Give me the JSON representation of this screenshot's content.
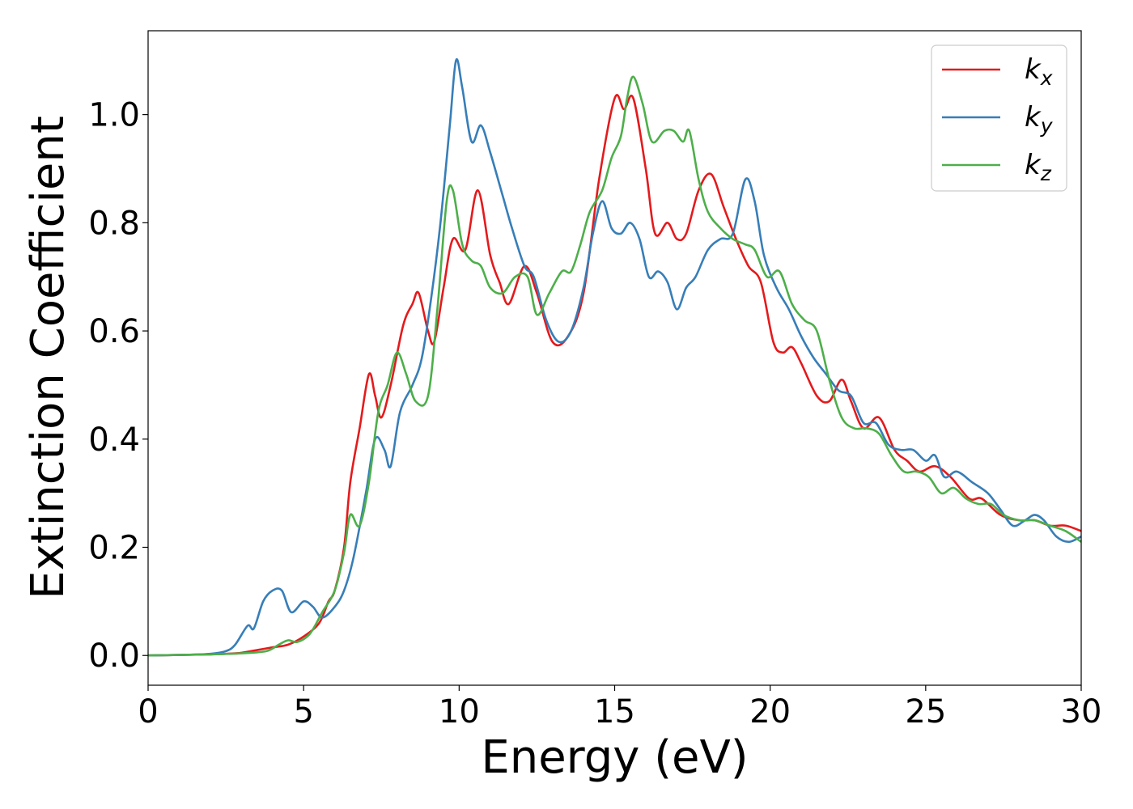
{
  "chart_data": {
    "type": "line",
    "title": "",
    "xlabel": "Energy (eV)",
    "ylabel": "Extinction Coefficient",
    "xlim": [
      0,
      30
    ],
    "ylim": [
      -0.055,
      1.155
    ],
    "xticks": [
      0,
      5,
      10,
      15,
      20,
      25,
      30
    ],
    "xtick_labels": [
      "0",
      "5",
      "10",
      "15",
      "20",
      "25",
      "30"
    ],
    "yticks": [
      0.0,
      0.2,
      0.4,
      0.6,
      0.8,
      1.0
    ],
    "ytick_labels": [
      "0.0",
      "0.2",
      "0.4",
      "0.6",
      "0.8",
      "1.0"
    ],
    "grid": false,
    "legend_position": "top-right",
    "series": [
      {
        "name": "k_x",
        "label_base": "k",
        "label_sub": "x",
        "color": "#e41a1c",
        "points": [
          [
            0,
            0
          ],
          [
            1,
            0.001
          ],
          [
            2,
            0.002
          ],
          [
            2.5,
            0.003
          ],
          [
            3,
            0.005
          ],
          [
            3.5,
            0.01
          ],
          [
            4,
            0.015
          ],
          [
            4.5,
            0.02
          ],
          [
            5,
            0.035
          ],
          [
            5.5,
            0.06
          ],
          [
            5.8,
            0.1
          ],
          [
            6,
            0.12
          ],
          [
            6.3,
            0.2
          ],
          [
            6.5,
            0.32
          ],
          [
            6.8,
            0.42
          ],
          [
            7.1,
            0.52
          ],
          [
            7.3,
            0.48
          ],
          [
            7.5,
            0.44
          ],
          [
            7.8,
            0.5
          ],
          [
            8.2,
            0.61
          ],
          [
            8.5,
            0.65
          ],
          [
            8.7,
            0.67
          ],
          [
            9,
            0.6
          ],
          [
            9.2,
            0.58
          ],
          [
            9.5,
            0.68
          ],
          [
            9.8,
            0.77
          ],
          [
            10.2,
            0.75
          ],
          [
            10.6,
            0.86
          ],
          [
            11,
            0.74
          ],
          [
            11.3,
            0.69
          ],
          [
            11.6,
            0.65
          ],
          [
            12.1,
            0.72
          ],
          [
            12.5,
            0.67
          ],
          [
            13,
            0.58
          ],
          [
            13.5,
            0.59
          ],
          [
            14,
            0.67
          ],
          [
            14.5,
            0.88
          ],
          [
            15,
            1.03
          ],
          [
            15.3,
            1.01
          ],
          [
            15.6,
            1.03
          ],
          [
            16,
            0.9
          ],
          [
            16.3,
            0.78
          ],
          [
            16.7,
            0.8
          ],
          [
            17,
            0.77
          ],
          [
            17.3,
            0.78
          ],
          [
            17.7,
            0.86
          ],
          [
            18.1,
            0.89
          ],
          [
            18.5,
            0.83
          ],
          [
            18.9,
            0.77
          ],
          [
            19.3,
            0.72
          ],
          [
            19.7,
            0.69
          ],
          [
            20.1,
            0.58
          ],
          [
            20.4,
            0.56
          ],
          [
            20.7,
            0.57
          ],
          [
            21,
            0.54
          ],
          [
            21.5,
            0.48
          ],
          [
            21.9,
            0.47
          ],
          [
            22.3,
            0.51
          ],
          [
            22.6,
            0.47
          ],
          [
            23,
            0.42
          ],
          [
            23.5,
            0.44
          ],
          [
            24,
            0.38
          ],
          [
            24.4,
            0.36
          ],
          [
            24.8,
            0.34
          ],
          [
            25.3,
            0.35
          ],
          [
            25.8,
            0.33
          ],
          [
            26.4,
            0.29
          ],
          [
            26.8,
            0.29
          ],
          [
            27.4,
            0.26
          ],
          [
            28,
            0.25
          ],
          [
            28.5,
            0.25
          ],
          [
            29,
            0.24
          ],
          [
            29.5,
            0.24
          ],
          [
            30,
            0.23
          ]
        ]
      },
      {
        "name": "k_y",
        "label_base": "k",
        "label_sub": "y",
        "color": "#377eb8",
        "points": [
          [
            0,
            0
          ],
          [
            1,
            0.001
          ],
          [
            2,
            0.003
          ],
          [
            2.5,
            0.008
          ],
          [
            2.8,
            0.02
          ],
          [
            3.2,
            0.055
          ],
          [
            3.4,
            0.05
          ],
          [
            3.7,
            0.1
          ],
          [
            4,
            0.12
          ],
          [
            4.3,
            0.12
          ],
          [
            4.6,
            0.08
          ],
          [
            5,
            0.1
          ],
          [
            5.3,
            0.09
          ],
          [
            5.6,
            0.07
          ],
          [
            6,
            0.09
          ],
          [
            6.3,
            0.12
          ],
          [
            6.6,
            0.18
          ],
          [
            7,
            0.3
          ],
          [
            7.3,
            0.4
          ],
          [
            7.6,
            0.38
          ],
          [
            7.8,
            0.35
          ],
          [
            8.1,
            0.45
          ],
          [
            8.5,
            0.5
          ],
          [
            8.8,
            0.55
          ],
          [
            9.1,
            0.66
          ],
          [
            9.4,
            0.8
          ],
          [
            9.7,
            0.98
          ],
          [
            9.9,
            1.1
          ],
          [
            10.1,
            1.05
          ],
          [
            10.4,
            0.95
          ],
          [
            10.7,
            0.98
          ],
          [
            11,
            0.93
          ],
          [
            11.4,
            0.85
          ],
          [
            11.7,
            0.79
          ],
          [
            12.1,
            0.72
          ],
          [
            12.4,
            0.7
          ],
          [
            12.8,
            0.62
          ],
          [
            13.2,
            0.58
          ],
          [
            13.6,
            0.6
          ],
          [
            14,
            0.68
          ],
          [
            14.3,
            0.78
          ],
          [
            14.6,
            0.84
          ],
          [
            14.9,
            0.79
          ],
          [
            15.2,
            0.78
          ],
          [
            15.5,
            0.8
          ],
          [
            15.8,
            0.77
          ],
          [
            16.1,
            0.7
          ],
          [
            16.4,
            0.71
          ],
          [
            16.7,
            0.69
          ],
          [
            17,
            0.64
          ],
          [
            17.3,
            0.68
          ],
          [
            17.6,
            0.7
          ],
          [
            18,
            0.75
          ],
          [
            18.4,
            0.77
          ],
          [
            18.8,
            0.78
          ],
          [
            19.2,
            0.88
          ],
          [
            19.5,
            0.84
          ],
          [
            19.8,
            0.74
          ],
          [
            20.2,
            0.68
          ],
          [
            20.6,
            0.64
          ],
          [
            21,
            0.59
          ],
          [
            21.4,
            0.55
          ],
          [
            21.8,
            0.52
          ],
          [
            22.2,
            0.49
          ],
          [
            22.6,
            0.48
          ],
          [
            23,
            0.43
          ],
          [
            23.4,
            0.43
          ],
          [
            23.8,
            0.39
          ],
          [
            24.2,
            0.38
          ],
          [
            24.6,
            0.38
          ],
          [
            25,
            0.36
          ],
          [
            25.3,
            0.37
          ],
          [
            25.6,
            0.33
          ],
          [
            26,
            0.34
          ],
          [
            26.5,
            0.32
          ],
          [
            27,
            0.3
          ],
          [
            27.4,
            0.27
          ],
          [
            27.8,
            0.24
          ],
          [
            28.2,
            0.25
          ],
          [
            28.5,
            0.26
          ],
          [
            28.8,
            0.25
          ],
          [
            29.2,
            0.22
          ],
          [
            29.6,
            0.21
          ],
          [
            30,
            0.22
          ]
        ]
      },
      {
        "name": "k_z",
        "label_base": "k",
        "label_sub": "z",
        "color": "#4daf4a",
        "points": [
          [
            0,
            0
          ],
          [
            1,
            0.001
          ],
          [
            2,
            0.002
          ],
          [
            3,
            0.004
          ],
          [
            3.8,
            0.008
          ],
          [
            4.2,
            0.02
          ],
          [
            4.5,
            0.028
          ],
          [
            4.8,
            0.025
          ],
          [
            5.2,
            0.04
          ],
          [
            5.6,
            0.08
          ],
          [
            6,
            0.12
          ],
          [
            6.3,
            0.19
          ],
          [
            6.5,
            0.26
          ],
          [
            6.8,
            0.24
          ],
          [
            7.1,
            0.32
          ],
          [
            7.4,
            0.45
          ],
          [
            7.7,
            0.5
          ],
          [
            8,
            0.56
          ],
          [
            8.3,
            0.52
          ],
          [
            8.6,
            0.47
          ],
          [
            9,
            0.48
          ],
          [
            9.3,
            0.64
          ],
          [
            9.6,
            0.84
          ],
          [
            9.8,
            0.86
          ],
          [
            10.1,
            0.76
          ],
          [
            10.4,
            0.73
          ],
          [
            10.7,
            0.72
          ],
          [
            11,
            0.68
          ],
          [
            11.4,
            0.67
          ],
          [
            11.8,
            0.7
          ],
          [
            12.2,
            0.7
          ],
          [
            12.5,
            0.63
          ],
          [
            12.9,
            0.67
          ],
          [
            13.3,
            0.71
          ],
          [
            13.6,
            0.71
          ],
          [
            13.9,
            0.76
          ],
          [
            14.2,
            0.82
          ],
          [
            14.6,
            0.86
          ],
          [
            14.9,
            0.92
          ],
          [
            15.2,
            0.96
          ],
          [
            15.4,
            1.03
          ],
          [
            15.6,
            1.07
          ],
          [
            15.9,
            1.02
          ],
          [
            16.2,
            0.95
          ],
          [
            16.6,
            0.97
          ],
          [
            16.9,
            0.97
          ],
          [
            17.2,
            0.95
          ],
          [
            17.4,
            0.97
          ],
          [
            17.7,
            0.88
          ],
          [
            18,
            0.82
          ],
          [
            18.4,
            0.79
          ],
          [
            18.8,
            0.77
          ],
          [
            19.2,
            0.76
          ],
          [
            19.5,
            0.75
          ],
          [
            19.9,
            0.7
          ],
          [
            20.3,
            0.71
          ],
          [
            20.7,
            0.65
          ],
          [
            21.1,
            0.62
          ],
          [
            21.5,
            0.6
          ],
          [
            21.9,
            0.51
          ],
          [
            22.3,
            0.44
          ],
          [
            22.7,
            0.42
          ],
          [
            23.1,
            0.42
          ],
          [
            23.5,
            0.41
          ],
          [
            23.9,
            0.37
          ],
          [
            24.3,
            0.34
          ],
          [
            24.7,
            0.34
          ],
          [
            25.1,
            0.33
          ],
          [
            25.5,
            0.3
          ],
          [
            25.9,
            0.31
          ],
          [
            26.3,
            0.29
          ],
          [
            26.7,
            0.28
          ],
          [
            27.1,
            0.28
          ],
          [
            27.5,
            0.26
          ],
          [
            28,
            0.25
          ],
          [
            28.5,
            0.25
          ],
          [
            29,
            0.24
          ],
          [
            29.5,
            0.23
          ],
          [
            30,
            0.21
          ]
        ]
      }
    ]
  }
}
